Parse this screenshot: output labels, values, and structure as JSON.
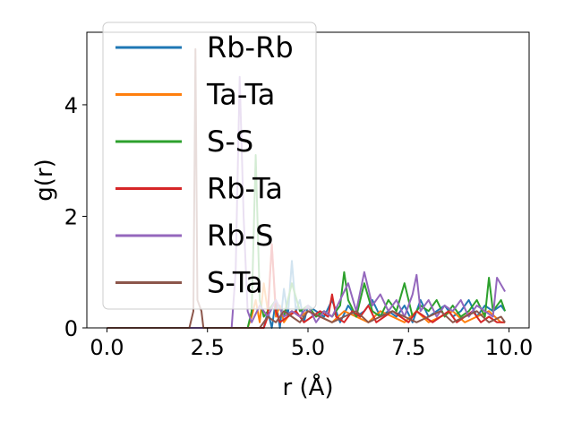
{
  "chart_data": {
    "type": "line",
    "xlabel": "r (Å)",
    "ylabel": "g(r)",
    "xlim": [
      -0.5,
      10.5
    ],
    "ylim": [
      0,
      5.3
    ],
    "xticks": [
      0.0,
      2.5,
      5.0,
      7.5,
      10.0
    ],
    "xtick_labels": [
      "0.0",
      "2.5",
      "5.0",
      "7.5",
      "10.0"
    ],
    "yticks": [
      0,
      2,
      4
    ],
    "ytick_labels": [
      "0",
      "2",
      "4"
    ],
    "grid": false,
    "legend_position": "upper-left",
    "series": [
      {
        "name": "Rb-Rb",
        "color": "#1f77b4",
        "x": [
          0,
          3.9,
          4.0,
          4.1,
          4.2,
          4.3,
          4.4,
          4.5,
          4.6,
          4.7,
          4.8,
          4.9,
          5.0,
          5.2,
          5.4,
          5.6,
          5.8,
          6.0,
          6.2,
          6.4,
          6.6,
          6.8,
          7.0,
          7.2,
          7.4,
          7.6,
          7.8,
          8.0,
          8.2,
          8.4,
          8.6,
          8.8,
          9.0,
          9.2,
          9.4,
          9.6,
          9.8,
          9.9
        ],
        "y": [
          0,
          0,
          0.3,
          0,
          0.5,
          0,
          0.7,
          0.2,
          1.2,
          0.3,
          0.5,
          0.1,
          0.4,
          0.3,
          0.2,
          0.5,
          0.1,
          0.4,
          0.2,
          0.3,
          0.5,
          0.2,
          0.3,
          0.2,
          0.4,
          0.1,
          0.5,
          0.2,
          0.3,
          0.4,
          0.2,
          0.3,
          0.5,
          0.2,
          0.4,
          0.3,
          0.4,
          0.3
        ]
      },
      {
        "name": "Ta-Ta",
        "color": "#ff7f0e",
        "x": [
          0,
          3.5,
          3.6,
          3.7,
          3.8,
          3.9,
          4.0,
          4.1,
          4.2,
          4.3,
          4.4,
          4.6,
          4.8,
          5.0,
          5.3,
          5.6,
          5.9,
          6.2,
          6.5,
          6.8,
          7.1,
          7.4,
          7.7,
          8.0,
          8.3,
          8.6,
          8.9,
          9.2,
          9.5,
          9.8,
          9.9
        ],
        "y": [
          0,
          0,
          0.2,
          0.5,
          0.1,
          0.8,
          0.3,
          1.5,
          0.2,
          0.4,
          0.1,
          0.3,
          0.2,
          0.3,
          0.2,
          0.1,
          0.3,
          0.2,
          0.1,
          0.3,
          0.2,
          0.1,
          0.3,
          0.1,
          0.2,
          0.3,
          0.1,
          0.2,
          0.3,
          0.1,
          0.1
        ]
      },
      {
        "name": "S-S",
        "color": "#2ca02c",
        "x": [
          0,
          3.5,
          3.6,
          3.7,
          3.8,
          3.9,
          4.0,
          4.2,
          4.4,
          4.6,
          4.8,
          5.0,
          5.2,
          5.4,
          5.6,
          5.8,
          5.9,
          6.0,
          6.2,
          6.4,
          6.6,
          6.8,
          7.0,
          7.2,
          7.4,
          7.6,
          7.8,
          8.0,
          8.2,
          8.4,
          8.6,
          8.8,
          9.0,
          9.2,
          9.4,
          9.5,
          9.6,
          9.8,
          9.9
        ],
        "y": [
          0,
          0,
          0.3,
          3.1,
          0.5,
          0.2,
          0.3,
          0.5,
          0.2,
          0.8,
          0.3,
          0.4,
          0.2,
          0.3,
          0.2,
          0.4,
          1.0,
          0.5,
          0.2,
          0.8,
          0.3,
          0.2,
          0.5,
          0.3,
          0.8,
          0.2,
          0.4,
          0.3,
          0.5,
          0.2,
          0.4,
          0.2,
          0.3,
          0.5,
          0.2,
          0.9,
          0.3,
          0.5,
          0.3
        ]
      },
      {
        "name": "Rb-Ta",
        "color": "#d62728",
        "x": [
          0,
          3.9,
          4.0,
          4.1,
          4.2,
          4.3,
          4.5,
          4.7,
          4.9,
          5.1,
          5.3,
          5.5,
          5.6,
          5.7,
          5.9,
          6.1,
          6.3,
          6.5,
          6.7,
          6.9,
          7.1,
          7.3,
          7.5,
          7.7,
          7.9,
          8.1,
          8.3,
          8.5,
          8.7,
          8.9,
          9.1,
          9.3,
          9.5,
          9.7,
          9.9
        ],
        "y": [
          0,
          0,
          0.2,
          1.5,
          0.3,
          0.1,
          0.2,
          0.3,
          0.1,
          0.2,
          0.3,
          0.2,
          0.6,
          0.2,
          0.1,
          0.3,
          0.2,
          0.4,
          0.1,
          0.2,
          0.3,
          0.2,
          0.1,
          0.3,
          0.2,
          0.1,
          0.2,
          0.3,
          0.1,
          0.2,
          0.3,
          0.1,
          0.2,
          0.1,
          0.1
        ]
      },
      {
        "name": "Rb-S",
        "color": "#9467bd",
        "x": [
          0,
          3.1,
          3.2,
          3.3,
          3.4,
          3.5,
          3.6,
          3.8,
          4.0,
          4.2,
          4.4,
          4.6,
          4.8,
          5.0,
          5.2,
          5.4,
          5.6,
          5.8,
          6.0,
          6.2,
          6.4,
          6.6,
          6.8,
          7.0,
          7.2,
          7.4,
          7.6,
          7.7,
          7.8,
          8.0,
          8.2,
          8.4,
          8.6,
          8.8,
          9.0,
          9.2,
          9.4,
          9.6,
          9.7,
          9.9
        ],
        "y": [
          0,
          0,
          1.0,
          4.5,
          2.0,
          0.3,
          0.1,
          0.4,
          0.2,
          0.5,
          0.2,
          0.3,
          0.2,
          0.4,
          0.1,
          0.3,
          0.2,
          0.5,
          0.8,
          0.3,
          1.0,
          0.4,
          0.6,
          0.3,
          0.5,
          0.2,
          0.6,
          0.95,
          0.3,
          0.5,
          0.2,
          0.4,
          0.3,
          0.5,
          0.2,
          0.4,
          0.3,
          0.2,
          0.9,
          0.65
        ]
      },
      {
        "name": "S-Ta",
        "color": "#8c564b",
        "x": [
          0,
          2.05,
          2.15,
          2.2,
          2.25,
          2.35,
          2.4,
          3.8,
          4.0,
          4.2,
          4.4,
          4.6,
          4.8,
          5.0,
          5.3,
          5.6,
          5.9,
          6.2,
          6.5,
          6.8,
          7.1,
          7.4,
          7.7,
          8.0,
          8.3,
          8.6,
          8.9,
          9.2,
          9.5,
          9.8,
          9.9
        ],
        "y": [
          0,
          0,
          0.3,
          5.0,
          0.5,
          0.3,
          0,
          0,
          0.2,
          0.1,
          0.3,
          0.2,
          0.1,
          0.3,
          0.2,
          0.1,
          0.2,
          0.3,
          0.1,
          0.2,
          0.3,
          0.2,
          0.1,
          0.2,
          0.3,
          0.1,
          0.2,
          0.3,
          0.1,
          0.2,
          0.1
        ]
      }
    ]
  }
}
